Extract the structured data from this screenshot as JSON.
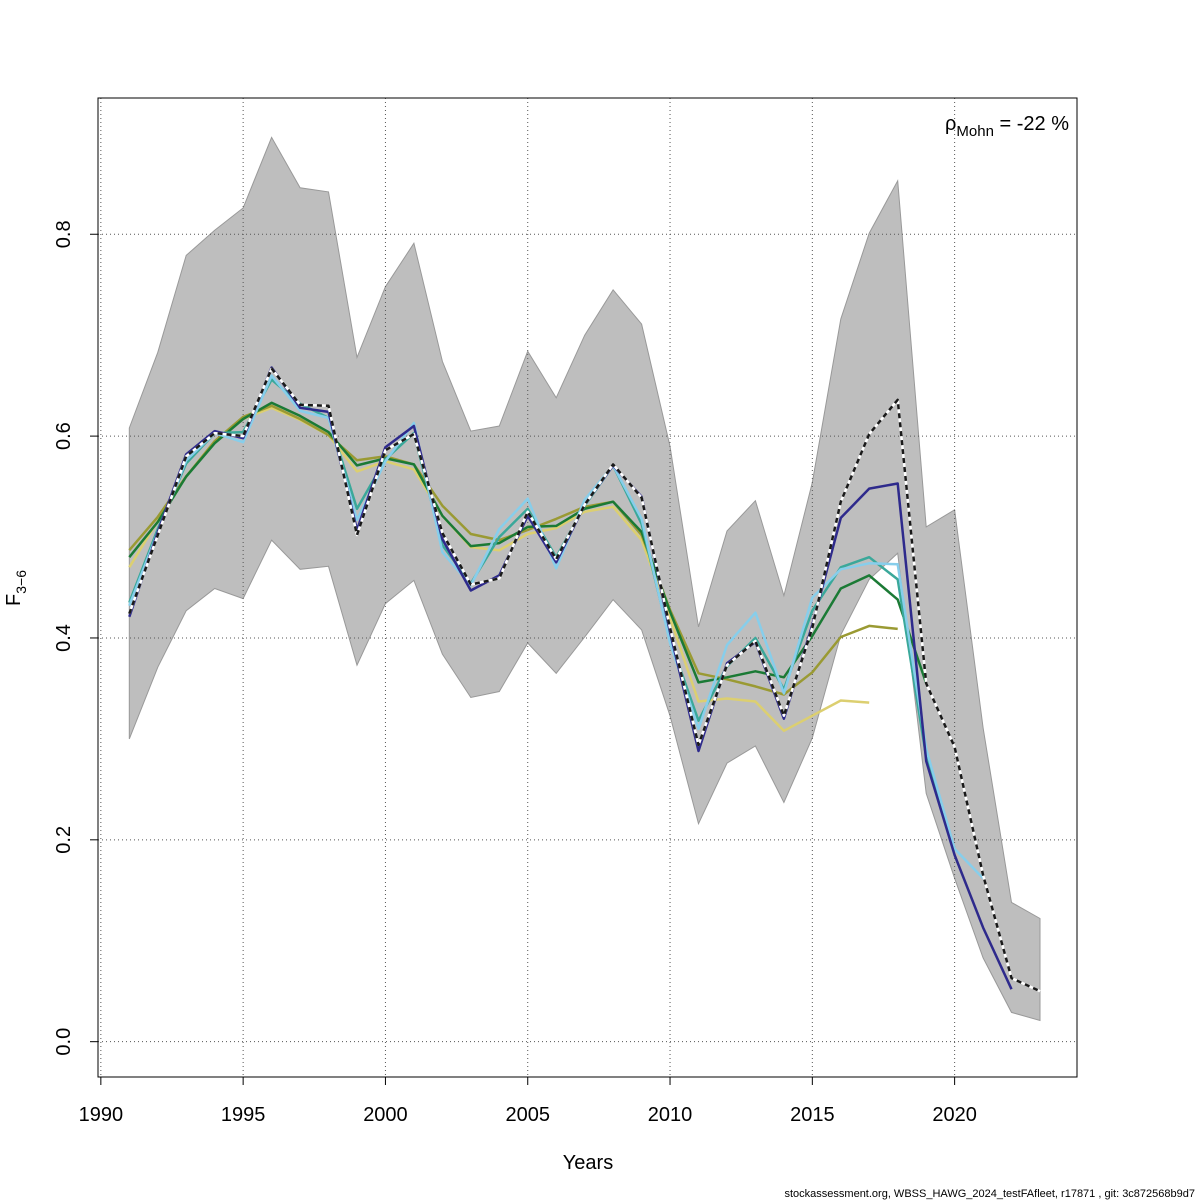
{
  "chart_data": {
    "type": "line",
    "title": "",
    "xlabel": "Years",
    "ylabel_main": "F",
    "ylabel_sub": "3−6",
    "xlim": [
      1989.9,
      2024.3
    ],
    "ylim": [
      -0.035,
      0.935
    ],
    "xticks": [
      1990,
      1995,
      2000,
      2005,
      2010,
      2015,
      2020
    ],
    "yticks": [
      0.0,
      0.2,
      0.4,
      0.6,
      0.8
    ],
    "ytick_labels": [
      "0.0",
      "0.2",
      "0.4",
      "0.6",
      "0.8"
    ],
    "grid": true,
    "annotation": {
      "rho": "ρ",
      "sub": "Mohn",
      "value": " = -22 %"
    },
    "colors": {
      "band": "#bebebe",
      "band_outline": "#999999",
      "base": "#1a1a1a",
      "grid": "#555555"
    },
    "confidence_band": {
      "x": [
        1991,
        1992,
        1993,
        1994,
        1995,
        1996,
        1997,
        1998,
        1999,
        2000,
        2001,
        2002,
        2003,
        2004,
        2005,
        2006,
        2007,
        2008,
        2009,
        2010,
        2011,
        2012,
        2013,
        2014,
        2015,
        2016,
        2017,
        2018,
        2019,
        2020,
        2021,
        2022,
        2023
      ],
      "upper": [
        0.608,
        0.683,
        0.779,
        0.804,
        0.826,
        0.896,
        0.846,
        0.842,
        0.678,
        0.748,
        0.791,
        0.674,
        0.605,
        0.61,
        0.684,
        0.638,
        0.7,
        0.745,
        0.711,
        0.59,
        0.411,
        0.506,
        0.536,
        0.442,
        0.554,
        0.716,
        0.801,
        0.853,
        0.51,
        0.527,
        0.311,
        0.138,
        0.122
      ],
      "lower": [
        0.3,
        0.371,
        0.427,
        0.449,
        0.439,
        0.497,
        0.468,
        0.471,
        0.373,
        0.434,
        0.457,
        0.384,
        0.341,
        0.347,
        0.395,
        0.365,
        0.401,
        0.438,
        0.408,
        0.323,
        0.216,
        0.276,
        0.293,
        0.237,
        0.301,
        0.403,
        0.458,
        0.484,
        0.246,
        0.162,
        0.083,
        0.029,
        0.021
      ]
    },
    "series": [
      {
        "color": "#1a1a1a",
        "dashed": true,
        "x": [
          1991,
          1992,
          1993,
          1994,
          1995,
          1996,
          1997,
          1998,
          1999,
          2000,
          2001,
          2002,
          2003,
          2004,
          2005,
          2006,
          2007,
          2008,
          2009,
          2010,
          2011,
          2012,
          2013,
          2014,
          2015,
          2016,
          2017,
          2018,
          2019,
          2020,
          2021,
          2022,
          2023
        ],
        "values": [
          0.424,
          0.502,
          0.58,
          0.603,
          0.6,
          0.667,
          0.631,
          0.63,
          0.502,
          0.586,
          0.602,
          0.504,
          0.453,
          0.459,
          0.525,
          0.478,
          0.532,
          0.572,
          0.539,
          0.41,
          0.294,
          0.373,
          0.397,
          0.323,
          0.41,
          0.535,
          0.602,
          0.636,
          0.355,
          0.292,
          0.165,
          0.063,
          0.05
        ]
      },
      {
        "color": "#2e2a8c",
        "dashed": false,
        "x": [
          1991,
          1992,
          1993,
          1994,
          1995,
          1996,
          1997,
          1998,
          1999,
          2000,
          2001,
          2002,
          2003,
          2004,
          2005,
          2006,
          2007,
          2008,
          2009,
          2010,
          2011,
          2012,
          2013,
          2014,
          2015,
          2016,
          2017,
          2018,
          2019,
          2020,
          2021,
          2022
        ],
        "values": [
          0.421,
          0.505,
          0.582,
          0.605,
          0.598,
          0.668,
          0.628,
          0.624,
          0.507,
          0.589,
          0.61,
          0.498,
          0.447,
          0.462,
          0.521,
          0.475,
          0.532,
          0.571,
          0.54,
          0.406,
          0.288,
          0.375,
          0.396,
          0.32,
          0.413,
          0.519,
          0.548,
          0.553,
          0.278,
          0.185,
          0.113,
          0.052
        ]
      },
      {
        "color": "#87ceeb",
        "dashed": false,
        "x": [
          1991,
          1992,
          1993,
          1994,
          1995,
          1996,
          1997,
          1998,
          1999,
          2000,
          2001,
          2002,
          2003,
          2004,
          2005,
          2006,
          2007,
          2008,
          2009,
          2010,
          2011,
          2012,
          2013,
          2014,
          2015,
          2016,
          2017,
          2018,
          2019,
          2020,
          2021
        ],
        "values": [
          0.432,
          0.505,
          0.576,
          0.603,
          0.594,
          0.66,
          0.625,
          0.618,
          0.517,
          0.575,
          0.613,
          0.485,
          0.452,
          0.508,
          0.538,
          0.469,
          0.537,
          0.571,
          0.518,
          0.395,
          0.31,
          0.393,
          0.425,
          0.345,
          0.44,
          0.468,
          0.474,
          0.473,
          0.29,
          0.191,
          0.162
        ]
      },
      {
        "color": "#3aa89a",
        "dashed": false,
        "x": [
          1991,
          1992,
          1993,
          1994,
          1995,
          1996,
          1997,
          1998,
          1999,
          2000,
          2001,
          2002,
          2003,
          2004,
          2005,
          2006,
          2007,
          2008,
          2009,
          2010,
          2011,
          2012,
          2013,
          2014,
          2015,
          2016,
          2017,
          2018,
          2019,
          2020
        ],
        "values": [
          0.435,
          0.508,
          0.573,
          0.603,
          0.604,
          0.656,
          0.632,
          0.618,
          0.528,
          0.577,
          0.603,
          0.492,
          0.454,
          0.5,
          0.528,
          0.48,
          0.531,
          0.571,
          0.513,
          0.398,
          0.318,
          0.372,
          0.4,
          0.349,
          0.427,
          0.47,
          0.48,
          0.458,
          0.282,
          0.19
        ]
      },
      {
        "color": "#1b7a35",
        "dashed": false,
        "x": [
          1991,
          1992,
          1993,
          1994,
          1995,
          1996,
          1997,
          1998,
          1999,
          2000,
          2001,
          2002,
          2003,
          2004,
          2005,
          2006,
          2007,
          2008,
          2009,
          2010,
          2011,
          2012,
          2013,
          2014,
          2015,
          2016,
          2017,
          2018,
          2019
        ],
        "values": [
          0.48,
          0.515,
          0.56,
          0.593,
          0.617,
          0.633,
          0.62,
          0.604,
          0.571,
          0.578,
          0.572,
          0.521,
          0.491,
          0.494,
          0.51,
          0.511,
          0.528,
          0.535,
          0.505,
          0.426,
          0.356,
          0.361,
          0.367,
          0.361,
          0.402,
          0.449,
          0.462,
          0.438,
          0.355
        ]
      },
      {
        "color": "#9a9a33",
        "dashed": false,
        "x": [
          1991,
          1992,
          1993,
          1994,
          1995,
          1996,
          1997,
          1998,
          1999,
          2000,
          2001,
          2002,
          2003,
          2004,
          2005,
          2006,
          2007,
          2008,
          2009,
          2010,
          2011,
          2012,
          2013,
          2014,
          2015,
          2016,
          2017,
          2018
        ],
        "values": [
          0.487,
          0.52,
          0.56,
          0.595,
          0.619,
          0.63,
          0.617,
          0.601,
          0.576,
          0.58,
          0.572,
          0.531,
          0.503,
          0.497,
          0.507,
          0.518,
          0.53,
          0.535,
          0.502,
          0.428,
          0.365,
          0.359,
          0.352,
          0.344,
          0.366,
          0.401,
          0.412,
          0.409
        ]
      },
      {
        "color": "#dccf70",
        "dashed": false,
        "x": [
          1991,
          1992,
          1993,
          1994,
          1995,
          1996,
          1997,
          1998,
          1999,
          2000,
          2001,
          2002,
          2003,
          2004,
          2005,
          2006,
          2007,
          2008,
          2009,
          2010,
          2011,
          2012,
          2013,
          2014,
          2015,
          2016,
          2017
        ],
        "values": [
          0.47,
          0.516,
          0.56,
          0.595,
          0.617,
          0.628,
          0.616,
          0.601,
          0.565,
          0.575,
          0.567,
          0.521,
          0.49,
          0.487,
          0.503,
          0.509,
          0.525,
          0.53,
          0.497,
          0.42,
          0.337,
          0.34,
          0.337,
          0.308,
          0.323,
          0.338,
          0.336
        ]
      }
    ]
  },
  "footer": "stockassessment.org, WBSS_HAWG_2024_testFAfleet, r17871 , git: 3c872568b9d7"
}
